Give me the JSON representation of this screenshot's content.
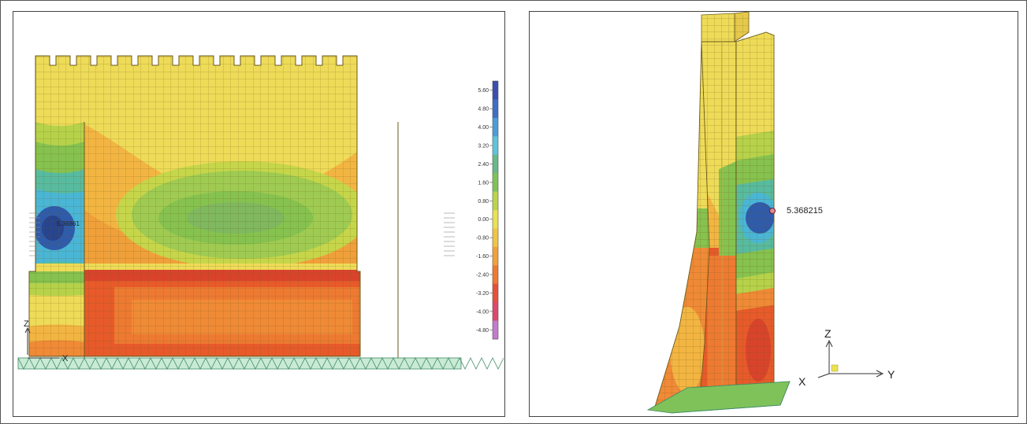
{
  "left_panel": {
    "legend": {
      "labels": [
        "5.60",
        "4.80",
        "4.00",
        "3.20",
        "2.40",
        "1.60",
        "0.80",
        "0.00",
        "-0.80",
        "-1.60",
        "-2.40",
        "-3.20",
        "-4.00",
        "-4.80"
      ],
      "colors": [
        "#3b4fae",
        "#3f6fc2",
        "#4a9dd6",
        "#5fc3dc",
        "#68b88a",
        "#7fc25a",
        "#b9d44a",
        "#e9e252",
        "#f2c445",
        "#f2a03a",
        "#ee7a32",
        "#e6513a",
        "#d94a6c",
        "#c27ac9"
      ]
    },
    "annotation": "5.36861",
    "axis": {
      "z": "Z",
      "x": "X"
    }
  },
  "right_panel": {
    "annotation": "5.368215",
    "axis": {
      "z": "Z",
      "x": "X",
      "y": "Y"
    }
  },
  "colors": {
    "yellow": "#eedb58",
    "light_orange": "#f3b542",
    "orange": "#f08a36",
    "red_orange": "#e85a2a",
    "green": "#86c24f",
    "light_green": "#b6d24a",
    "teal": "#57bba0",
    "cyan": "#4ab6d6",
    "blue": "#2f5bab",
    "ground": "#9fd9b4"
  }
}
